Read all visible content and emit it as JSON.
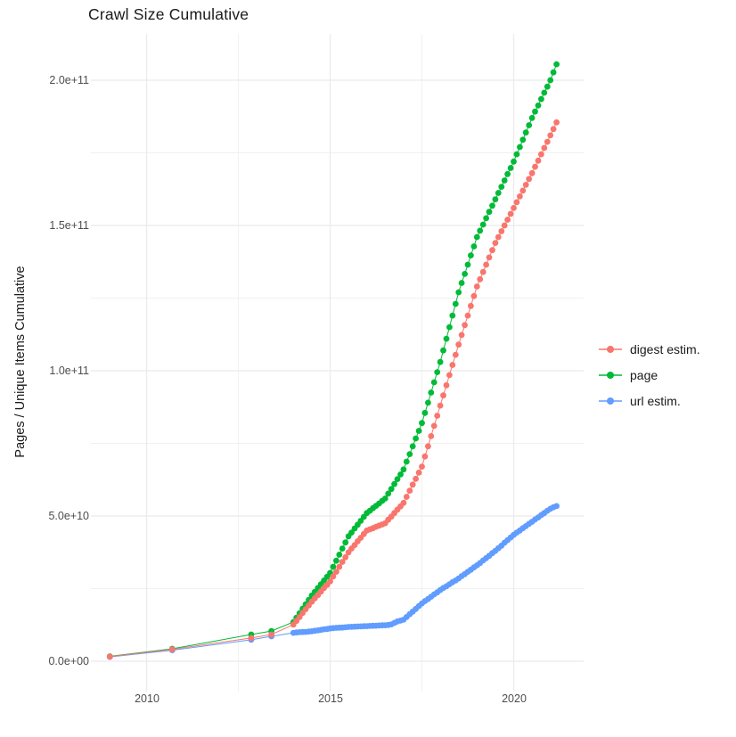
{
  "title": "Crawl Size Cumulative",
  "y_axis": {
    "label": "Pages / Unique Items Cumulative",
    "ticks": [
      "0.0e+00",
      "5.0e+10",
      "1.0e+11",
      "1.5e+11",
      "2.0e+11"
    ]
  },
  "x_axis": {
    "ticks": [
      "2010",
      "2015",
      "2020"
    ]
  },
  "legend": {
    "items": [
      {
        "label": "digest estim.",
        "color": "#F8766D"
      },
      {
        "label": "page",
        "color": "#00BA38"
      },
      {
        "label": "url estim.",
        "color": "#619CFF"
      }
    ]
  },
  "chart_data": {
    "type": "scatter",
    "title": "Crawl Size Cumulative",
    "xlabel": "",
    "ylabel": "Pages / Unique Items Cumulative",
    "legend_position": "right",
    "grid": true,
    "grid_color": "#ebebeb",
    "xlim": [
      2008.4,
      2021.9
    ],
    "ylim_e9": [
      -10,
      216
    ],
    "x_tick_values": [
      2010,
      2015,
      2020
    ],
    "x_minor_tick_values": [
      2012.5,
      2017.5
    ],
    "y_tick_values_e9": [
      0,
      50,
      100,
      150,
      200
    ],
    "y_minor_tick_values_e9": [
      25,
      75,
      125,
      175
    ],
    "y_unit_multiplier": 1000000000,
    "x": [
      2009,
      2010.7,
      2012.85,
      2013.4,
      2014,
      2014.083,
      2014.167,
      2014.25,
      2014.333,
      2014.417,
      2014.5,
      2014.583,
      2014.667,
      2014.75,
      2014.833,
      2014.917,
      2015,
      2015.083,
      2015.167,
      2015.25,
      2015.333,
      2015.417,
      2015.5,
      2015.583,
      2015.667,
      2015.75,
      2015.833,
      2015.917,
      2016,
      2016.083,
      2016.167,
      2016.25,
      2016.333,
      2016.417,
      2016.5,
      2016.583,
      2016.667,
      2016.75,
      2016.833,
      2016.917,
      2017,
      2017.083,
      2017.167,
      2017.25,
      2017.333,
      2017.417,
      2017.5,
      2017.583,
      2017.667,
      2017.75,
      2017.833,
      2017.917,
      2018,
      2018.083,
      2018.167,
      2018.25,
      2018.333,
      2018.417,
      2018.5,
      2018.583,
      2018.667,
      2018.75,
      2018.833,
      2018.917,
      2019,
      2019.083,
      2019.167,
      2019.25,
      2019.333,
      2019.417,
      2019.5,
      2019.583,
      2019.667,
      2019.75,
      2019.833,
      2019.917,
      2020,
      2020.083,
      2020.167,
      2020.25,
      2020.333,
      2020.417,
      2020.5,
      2020.583,
      2020.667,
      2020.75,
      2020.833,
      2020.917,
      2021,
      2021.083,
      2021.167
    ],
    "series": [
      {
        "name": "digest estim.",
        "color": "#F8766D",
        "values_e9": [
          1.6,
          4.1,
          8.0,
          9.2,
          12.6,
          13.9,
          15.2,
          16.6,
          17.9,
          19.2,
          20.5,
          21.7,
          22.8,
          24.0,
          25.2,
          26.3,
          27.5,
          29.2,
          30.8,
          32.5,
          34.2,
          35.8,
          37.5,
          38.8,
          40.0,
          41.3,
          42.5,
          43.8,
          45.0,
          45.4,
          45.8,
          46.3,
          46.7,
          47.1,
          47.5,
          48.7,
          49.8,
          51.0,
          52.2,
          53.3,
          54.5,
          56.6,
          58.7,
          60.8,
          62.8,
          64.9,
          67.0,
          70.5,
          74.0,
          77.5,
          81.0,
          84.5,
          88.0,
          91.5,
          95.0,
          98.5,
          102.0,
          105.5,
          109.0,
          112.3,
          115.7,
          119.0,
          122.3,
          125.7,
          129.0,
          131.5,
          134.0,
          136.5,
          139.0,
          141.5,
          144.0,
          146.0,
          148.0,
          150.0,
          152.0,
          154.0,
          156.0,
          158.0,
          160.0,
          162.0,
          164.0,
          166.0,
          168.0,
          170.2,
          172.3,
          174.5,
          176.7,
          178.8,
          181.0,
          183.2,
          185.5
        ]
      },
      {
        "name": "page",
        "color": "#00BA38",
        "values_e9": [
          1.7,
          4.3,
          9.2,
          10.4,
          13.5,
          15.0,
          16.5,
          18.1,
          19.6,
          21.1,
          22.6,
          23.9,
          25.2,
          26.5,
          27.8,
          29.1,
          30.4,
          32.5,
          34.6,
          36.7,
          38.8,
          40.9,
          43.0,
          44.3,
          45.7,
          47.0,
          48.3,
          49.7,
          51.0,
          51.8,
          52.7,
          53.5,
          54.3,
          55.2,
          56.0,
          57.7,
          59.3,
          61.0,
          62.7,
          64.3,
          66.0,
          68.7,
          71.3,
          74.0,
          76.7,
          79.3,
          82.0,
          85.5,
          89.0,
          92.5,
          96.0,
          99.5,
          103.0,
          107.0,
          111.0,
          115.0,
          119.0,
          123.0,
          127.0,
          130.2,
          133.3,
          136.5,
          139.7,
          142.8,
          146.0,
          148.2,
          150.3,
          152.5,
          154.7,
          156.8,
          159.0,
          161.2,
          163.3,
          165.5,
          167.7,
          169.8,
          172.0,
          174.5,
          177.0,
          179.5,
          182.0,
          184.5,
          187.0,
          189.2,
          191.3,
          193.5,
          195.7,
          197.8,
          200.0,
          202.7,
          205.5
        ]
      },
      {
        "name": "url estim.",
        "color": "#619CFF",
        "values_e9": [
          1.5,
          3.8,
          7.4,
          8.6,
          9.8,
          9.9,
          10.0,
          10.05,
          10.1,
          10.2,
          10.3,
          10.5,
          10.6,
          10.8,
          11.0,
          11.1,
          11.3,
          11.4,
          11.5,
          11.55,
          11.6,
          11.7,
          11.8,
          11.85,
          11.9,
          11.95,
          12.0,
          12.05,
          12.1,
          12.15,
          12.2,
          12.25,
          12.3,
          12.35,
          12.4,
          12.5,
          12.7,
          13.2,
          13.7,
          14.0,
          14.3,
          15.2,
          16.2,
          17.1,
          18.0,
          19.0,
          19.9,
          20.7,
          21.4,
          22.2,
          23.0,
          23.7,
          24.5,
          25.2,
          25.8,
          26.5,
          27.2,
          27.8,
          28.5,
          29.3,
          30.0,
          30.8,
          31.5,
          32.3,
          33.0,
          33.8,
          34.7,
          35.5,
          36.3,
          37.2,
          38.0,
          38.9,
          39.8,
          40.8,
          41.7,
          42.6,
          43.5,
          44.3,
          45.0,
          45.8,
          46.5,
          47.3,
          48.0,
          48.8,
          49.5,
          50.3,
          51.0,
          51.8,
          52.5,
          53.0,
          53.4
        ]
      }
    ]
  }
}
